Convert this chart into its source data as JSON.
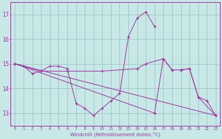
{
  "xlabel": "Windchill (Refroidissement éolien,°C)",
  "background_color": "#c8e8e8",
  "grid_color": "#a0c4c4",
  "line_color": "#993399",
  "ylim_min": 12.5,
  "ylim_max": 17.5,
  "xlim_min": -0.5,
  "xlim_max": 23.5,
  "yticks": [
    13,
    14,
    15,
    16,
    17
  ],
  "xticks": [
    0,
    1,
    2,
    3,
    4,
    5,
    6,
    7,
    8,
    9,
    10,
    11,
    12,
    13,
    14,
    15,
    16,
    17,
    18,
    19,
    20,
    21,
    22,
    23
  ],
  "line1_x": [
    0,
    1,
    2,
    3,
    4,
    5,
    6,
    7,
    8,
    9,
    10,
    11,
    12,
    13,
    14,
    15,
    16
  ],
  "line1_y": [
    15.0,
    14.9,
    14.6,
    14.7,
    14.9,
    14.9,
    14.8,
    13.4,
    13.2,
    12.9,
    13.2,
    13.5,
    13.8,
    16.1,
    16.85,
    17.1,
    16.5
  ],
  "line2_x": [
    0,
    3,
    6,
    10,
    14,
    15,
    17,
    18,
    19,
    20,
    21,
    23
  ],
  "line2_y": [
    15.0,
    14.7,
    14.7,
    14.7,
    14.8,
    15.0,
    15.2,
    14.75,
    14.75,
    14.8,
    13.65,
    12.9
  ],
  "line3_x": [
    0,
    16,
    17,
    18,
    19,
    20,
    21,
    22,
    23
  ],
  "line3_y": [
    15.0,
    13.0,
    15.2,
    14.75,
    14.75,
    14.8,
    13.65,
    13.5,
    12.9
  ]
}
